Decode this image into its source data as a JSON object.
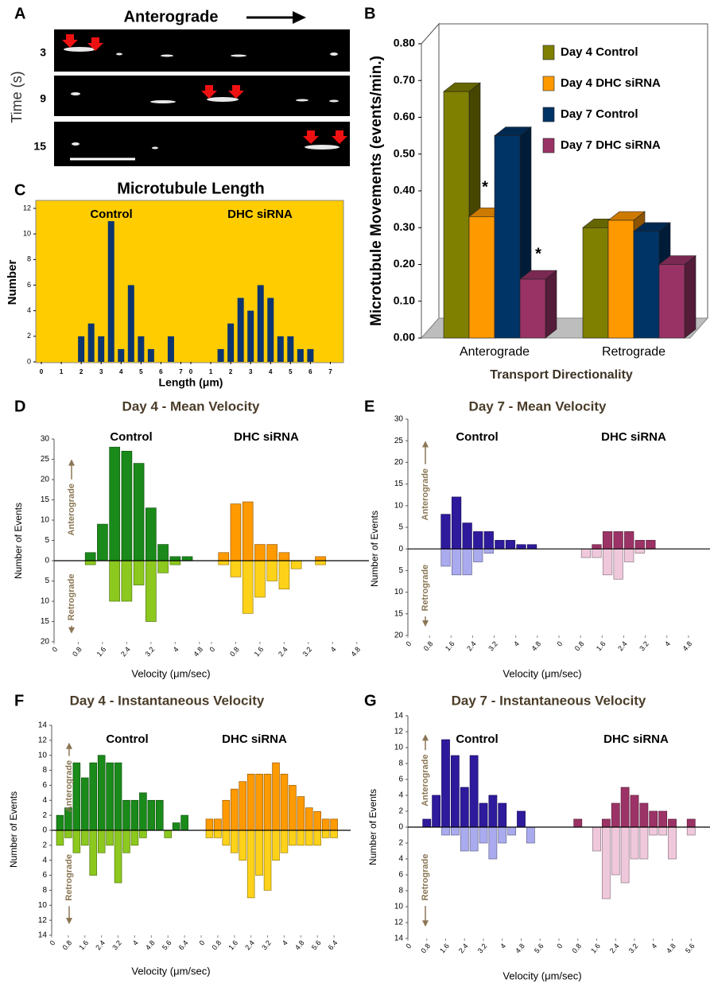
{
  "panel_a": {
    "panel": "A",
    "title": "Anterograde",
    "ylabel": "Time (s)",
    "rows": [
      3,
      9,
      15
    ]
  },
  "chart_data": [
    {
      "type": "bar3d",
      "panel": "B",
      "ylabel": "Microtubule Movements (events/min.)",
      "xlabel": "Transport Directionality",
      "categories": [
        "Anterograde",
        "Retrograde"
      ],
      "series": [
        {
          "name": "Day 4 Control",
          "color": "#7f7f00",
          "values": [
            0.67,
            0.3
          ]
        },
        {
          "name": "Day 4 DHC siRNA",
          "color": "#ff9900",
          "values": [
            0.33,
            0.32
          ]
        },
        {
          "name": "Day 7 Control",
          "color": "#003366",
          "values": [
            0.55,
            0.29
          ]
        },
        {
          "name": "Day 7 DHC siRNA",
          "color": "#993366",
          "values": [
            0.16,
            0.2
          ]
        }
      ],
      "annotations": [
        "*",
        "*"
      ],
      "ylim": [
        0,
        0.8
      ],
      "yticks": [
        {
          "value": 0,
          "label": "0.00"
        },
        {
          "value": 0.1,
          "label": "0.10"
        },
        {
          "value": 0.2,
          "label": "0.20"
        },
        {
          "value": 0.3,
          "label": "0.30"
        },
        {
          "value": 0.4,
          "label": "0.40"
        },
        {
          "value": 0.5,
          "label": "0.50"
        },
        {
          "value": 0.6,
          "label": "0.60"
        },
        {
          "value": 0.7,
          "label": "0.70"
        },
        {
          "value": 0.8,
          "label": "0.80"
        }
      ],
      "legend": "upper right"
    },
    {
      "type": "histogram",
      "panel": "C",
      "title": "Microtubule Length",
      "ylabel": "Number",
      "xlabel": "Length (μm)",
      "background": "#ffcc00",
      "series": [
        {
          "name": "Control",
          "color": "#0d3570",
          "x": [
            2,
            2.5,
            3,
            3.5,
            4,
            4.5,
            5,
            5.5,
            6.5
          ],
          "values": [
            2,
            3,
            2,
            11,
            1,
            6,
            2,
            1,
            2
          ]
        },
        {
          "name": "DHC siRNA",
          "color": "#0d3570",
          "x": [
            1.5,
            2,
            2.5,
            3,
            3.5,
            4,
            4.5,
            5,
            5.5,
            6
          ],
          "values": [
            1,
            3,
            5,
            4,
            6,
            5,
            2,
            2,
            1,
            1
          ]
        }
      ],
      "xlim": [
        0,
        7.5
      ],
      "xticks": [
        0,
        1,
        2,
        3,
        4,
        5,
        6,
        7
      ],
      "ylim": [
        0,
        12
      ],
      "yticks": [
        0,
        2,
        4,
        6,
        8,
        10,
        12
      ]
    },
    {
      "type": "butterfly",
      "panel": "D",
      "title": "Day 4 - Mean Velocity",
      "ylabel": "Number of Events",
      "xlabel": "Velocity (μm/sec)",
      "up_label": "Anterograde",
      "down_label": "Retrograde",
      "groups": [
        {
          "label": "Control",
          "x": [
            1.2,
            1.6,
            2.0,
            2.4,
            2.8,
            3.2,
            3.6,
            4.0,
            4.4
          ],
          "series": [
            {
              "color": "#1a8a1a",
              "values": [
                2,
                9,
                28,
                27,
                24,
                13,
                4,
                1,
                1
              ]
            },
            {
              "color": "#8cc81e",
              "values": [
                -1,
                0,
                -10,
                -10,
                -6,
                -15,
                -3,
                -1,
                0
              ]
            }
          ]
        },
        {
          "label": "DHC siRNA",
          "x": [
            0.4,
            0.8,
            1.2,
            1.6,
            2.0,
            2.4,
            2.8,
            3.6
          ],
          "series": [
            {
              "color": "#ff9a00",
              "values": [
                2,
                14,
                14.5,
                4,
                4,
                2,
                0,
                1
              ]
            },
            {
              "color": "#ffd21a",
              "values": [
                -1,
                -4,
                -13,
                -9,
                -5,
                -7,
                -2,
                -1
              ]
            }
          ]
        }
      ],
      "xlim": [
        0,
        5.2
      ],
      "xticks": [
        0,
        0.8,
        1.6,
        2.4,
        3.2,
        4,
        4.8
      ],
      "ylim": [
        -20,
        30
      ],
      "yticks": [
        {
          "value": -20,
          "label": "20"
        },
        {
          "value": -15,
          "label": "15"
        },
        {
          "value": -10,
          "label": "10"
        },
        {
          "value": -5,
          "label": "5"
        },
        0,
        5,
        10,
        15,
        20,
        25,
        30
      ]
    },
    {
      "type": "butterfly",
      "panel": "E",
      "title": "Day 7 - Mean Velocity",
      "ylabel": "Number of Events",
      "xlabel": "Velocity (μm/sec)",
      "up_label": "Anterograde",
      "down_label": "Retrograde",
      "groups": [
        {
          "label": "Control",
          "x": [
            1.4,
            1.8,
            2.2,
            2.6,
            3.0,
            3.4,
            3.8,
            4.2,
            4.6
          ],
          "series": [
            {
              "color": "#2e1a9c",
              "values": [
                8,
                12,
                6,
                4,
                4,
                2,
                2,
                1,
                1
              ]
            },
            {
              "color": "#aaaaee",
              "values": [
                -4,
                -6,
                -6,
                -3,
                -1,
                0,
                0,
                0,
                0
              ]
            }
          ]
        },
        {
          "label": "DHC siRNA",
          "x": [
            1.0,
            1.4,
            1.8,
            2.2,
            2.6,
            3.0,
            3.4
          ],
          "series": [
            {
              "color": "#9c3366",
              "values": [
                0,
                1,
                4,
                4,
                4,
                2,
                2
              ]
            },
            {
              "color": "#efc8dc",
              "values": [
                -2,
                -2,
                -6,
                -7,
                -3,
                -1,
                0
              ]
            }
          ]
        }
      ],
      "xlim": [
        0,
        5.6
      ],
      "xticks": [
        0,
        0.8,
        1.6,
        2.4,
        3.2,
        4,
        4.8
      ],
      "ylim": [
        -20,
        30
      ],
      "yticks": [
        {
          "value": -20,
          "label": "20"
        },
        {
          "value": -15,
          "label": "15"
        },
        {
          "value": -10,
          "label": "10"
        },
        {
          "value": -5,
          "label": "5"
        },
        0,
        5,
        10,
        15,
        20,
        25,
        30
      ]
    },
    {
      "type": "butterfly",
      "panel": "F",
      "title": "Day 4 - Instantaneous Velocity",
      "ylabel": "Number of Events",
      "xlabel": "Velocity (μm/sec)",
      "up_label": "Anterograde",
      "down_label": "Retrograde",
      "groups": [
        {
          "label": "Control",
          "x": [
            0.4,
            0.8,
            1.2,
            1.6,
            2.0,
            2.4,
            2.8,
            3.2,
            3.6,
            4.0,
            4.4,
            4.8,
            5.2,
            5.6,
            6.0,
            6.4
          ],
          "series": [
            {
              "color": "#1a8a1a",
              "values": [
                2,
                3,
                9,
                7,
                9,
                10,
                9,
                9,
                4,
                4,
                5,
                4,
                4,
                0,
                1,
                2
              ]
            },
            {
              "color": "#8cc81e",
              "values": [
                -2,
                -1,
                -3,
                -2,
                -6,
                -3,
                -2,
                -7,
                -3,
                -2,
                -1,
                0,
                0,
                -1,
                0,
                0
              ]
            }
          ]
        },
        {
          "label": "DHC siRNA",
          "x": [
            0.4,
            0.8,
            1.2,
            1.6,
            2.0,
            2.4,
            2.8,
            3.2,
            3.6,
            4.0,
            4.4,
            4.8,
            5.2,
            5.6,
            6.0,
            6.4
          ],
          "series": [
            {
              "color": "#ff9a00",
              "values": [
                1.5,
                1.5,
                4,
                5.5,
                6.5,
                7.5,
                7.5,
                7.5,
                9,
                7.5,
                6,
                4.5,
                3,
                2.5,
                1.5,
                1.5
              ]
            },
            {
              "color": "#ffd21a",
              "values": [
                -1,
                -1,
                -2,
                -3,
                -4,
                -9,
                -6,
                -8,
                -4,
                -3,
                -2,
                -2,
                -2,
                -2,
                -1,
                -1
              ]
            }
          ]
        }
      ],
      "xlim": [
        0,
        7.2
      ],
      "xticks": [
        0,
        0.8,
        1.6,
        2.4,
        3.2,
        4,
        4.8,
        5.6,
        6.4
      ],
      "ylim": [
        -14,
        14
      ],
      "yticks": [
        {
          "value": -14,
          "label": "14"
        },
        {
          "value": -12,
          "label": "12"
        },
        {
          "value": -10,
          "label": "10"
        },
        {
          "value": -8,
          "label": "8"
        },
        {
          "value": -6,
          "label": "6"
        },
        {
          "value": -4,
          "label": "4"
        },
        {
          "value": -2,
          "label": "2"
        },
        0,
        2,
        4,
        6,
        8,
        10,
        12,
        14
      ]
    },
    {
      "type": "butterfly",
      "panel": "G",
      "title": "Day 7 - Instantaneous Velocity",
      "ylabel": "Number of Events",
      "xlabel": "Velocity (μm/sec)",
      "up_label": "Anterograde",
      "down_label": "Retrograde",
      "groups": [
        {
          "label": "Control",
          "x": [
            0.8,
            1.2,
            1.6,
            2.0,
            2.4,
            2.8,
            3.2,
            3.6,
            4.0,
            4.4,
            4.8,
            5.2
          ],
          "series": [
            {
              "color": "#2e1a9c",
              "values": [
                1,
                4,
                11,
                9,
                5,
                9,
                3,
                4,
                3,
                0,
                2,
                0
              ]
            },
            {
              "color": "#aaaaee",
              "values": [
                0,
                0,
                -1,
                -1,
                -3,
                -3,
                -2,
                -4,
                -2,
                -1,
                0,
                -2
              ]
            }
          ]
        },
        {
          "label": "DHC siRNA",
          "x": [
            0.8,
            1.2,
            1.6,
            2.0,
            2.4,
            2.8,
            3.2,
            3.6,
            4.0,
            4.4,
            4.8,
            5.2,
            5.6
          ],
          "series": [
            {
              "color": "#9c3366",
              "values": [
                1,
                0,
                0,
                1,
                3,
                5,
                4,
                3,
                2,
                2,
                1,
                0,
                1
              ]
            },
            {
              "color": "#efc8dc",
              "values": [
                0,
                0,
                -3,
                -9,
                -6,
                -7,
                -4,
                -4,
                -1,
                -1,
                -4,
                0,
                -1
              ]
            }
          ]
        }
      ],
      "xlim": [
        0,
        6.4
      ],
      "xticks": [
        0,
        0.8,
        1.6,
        2.4,
        3.2,
        4,
        4.8,
        5.6
      ],
      "ylim": [
        -14,
        14
      ],
      "yticks": [
        {
          "value": -14,
          "label": "14"
        },
        {
          "value": -12,
          "label": "12"
        },
        {
          "value": -10,
          "label": "10"
        },
        {
          "value": -8,
          "label": "8"
        },
        {
          "value": -6,
          "label": "6"
        },
        {
          "value": -4,
          "label": "4"
        },
        {
          "value": -2,
          "label": "2"
        },
        0,
        2,
        4,
        6,
        8,
        10,
        12,
        14
      ]
    }
  ]
}
